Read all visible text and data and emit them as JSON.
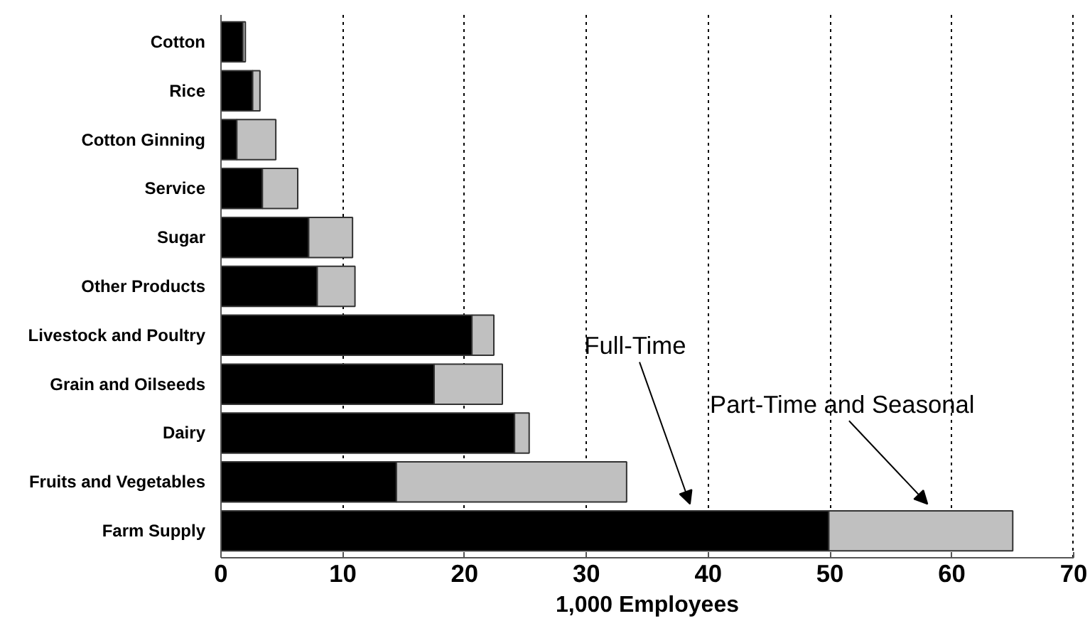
{
  "chart_data": {
    "type": "bar",
    "orientation": "horizontal",
    "stacked": true,
    "xlabel": "1,000 Employees",
    "categories": [
      "Cotton",
      "Rice",
      "Cotton Ginning",
      "Service",
      "Sugar",
      "Other Products",
      "Livestock and Poultry",
      "Grain and Oilseeds",
      "Dairy",
      "Fruits and Vegetables",
      "Farm Supply"
    ],
    "series": [
      {
        "name": "Full-Time",
        "color": "#000000",
        "values": [
          1.8,
          2.6,
          1.3,
          3.4,
          7.2,
          7.9,
          20.6,
          17.5,
          24.1,
          14.4,
          49.9
        ]
      },
      {
        "name": "Part-Time and Seasonal",
        "color": "#c0c0c0",
        "values": [
          0.2,
          0.6,
          3.2,
          2.9,
          3.6,
          3.1,
          1.8,
          5.6,
          1.2,
          18.9,
          15.1
        ]
      }
    ],
    "xlim": [
      0,
      70
    ],
    "xticks": [
      0,
      10,
      20,
      30,
      40,
      50,
      60,
      70
    ],
    "grid": "x"
  }
}
